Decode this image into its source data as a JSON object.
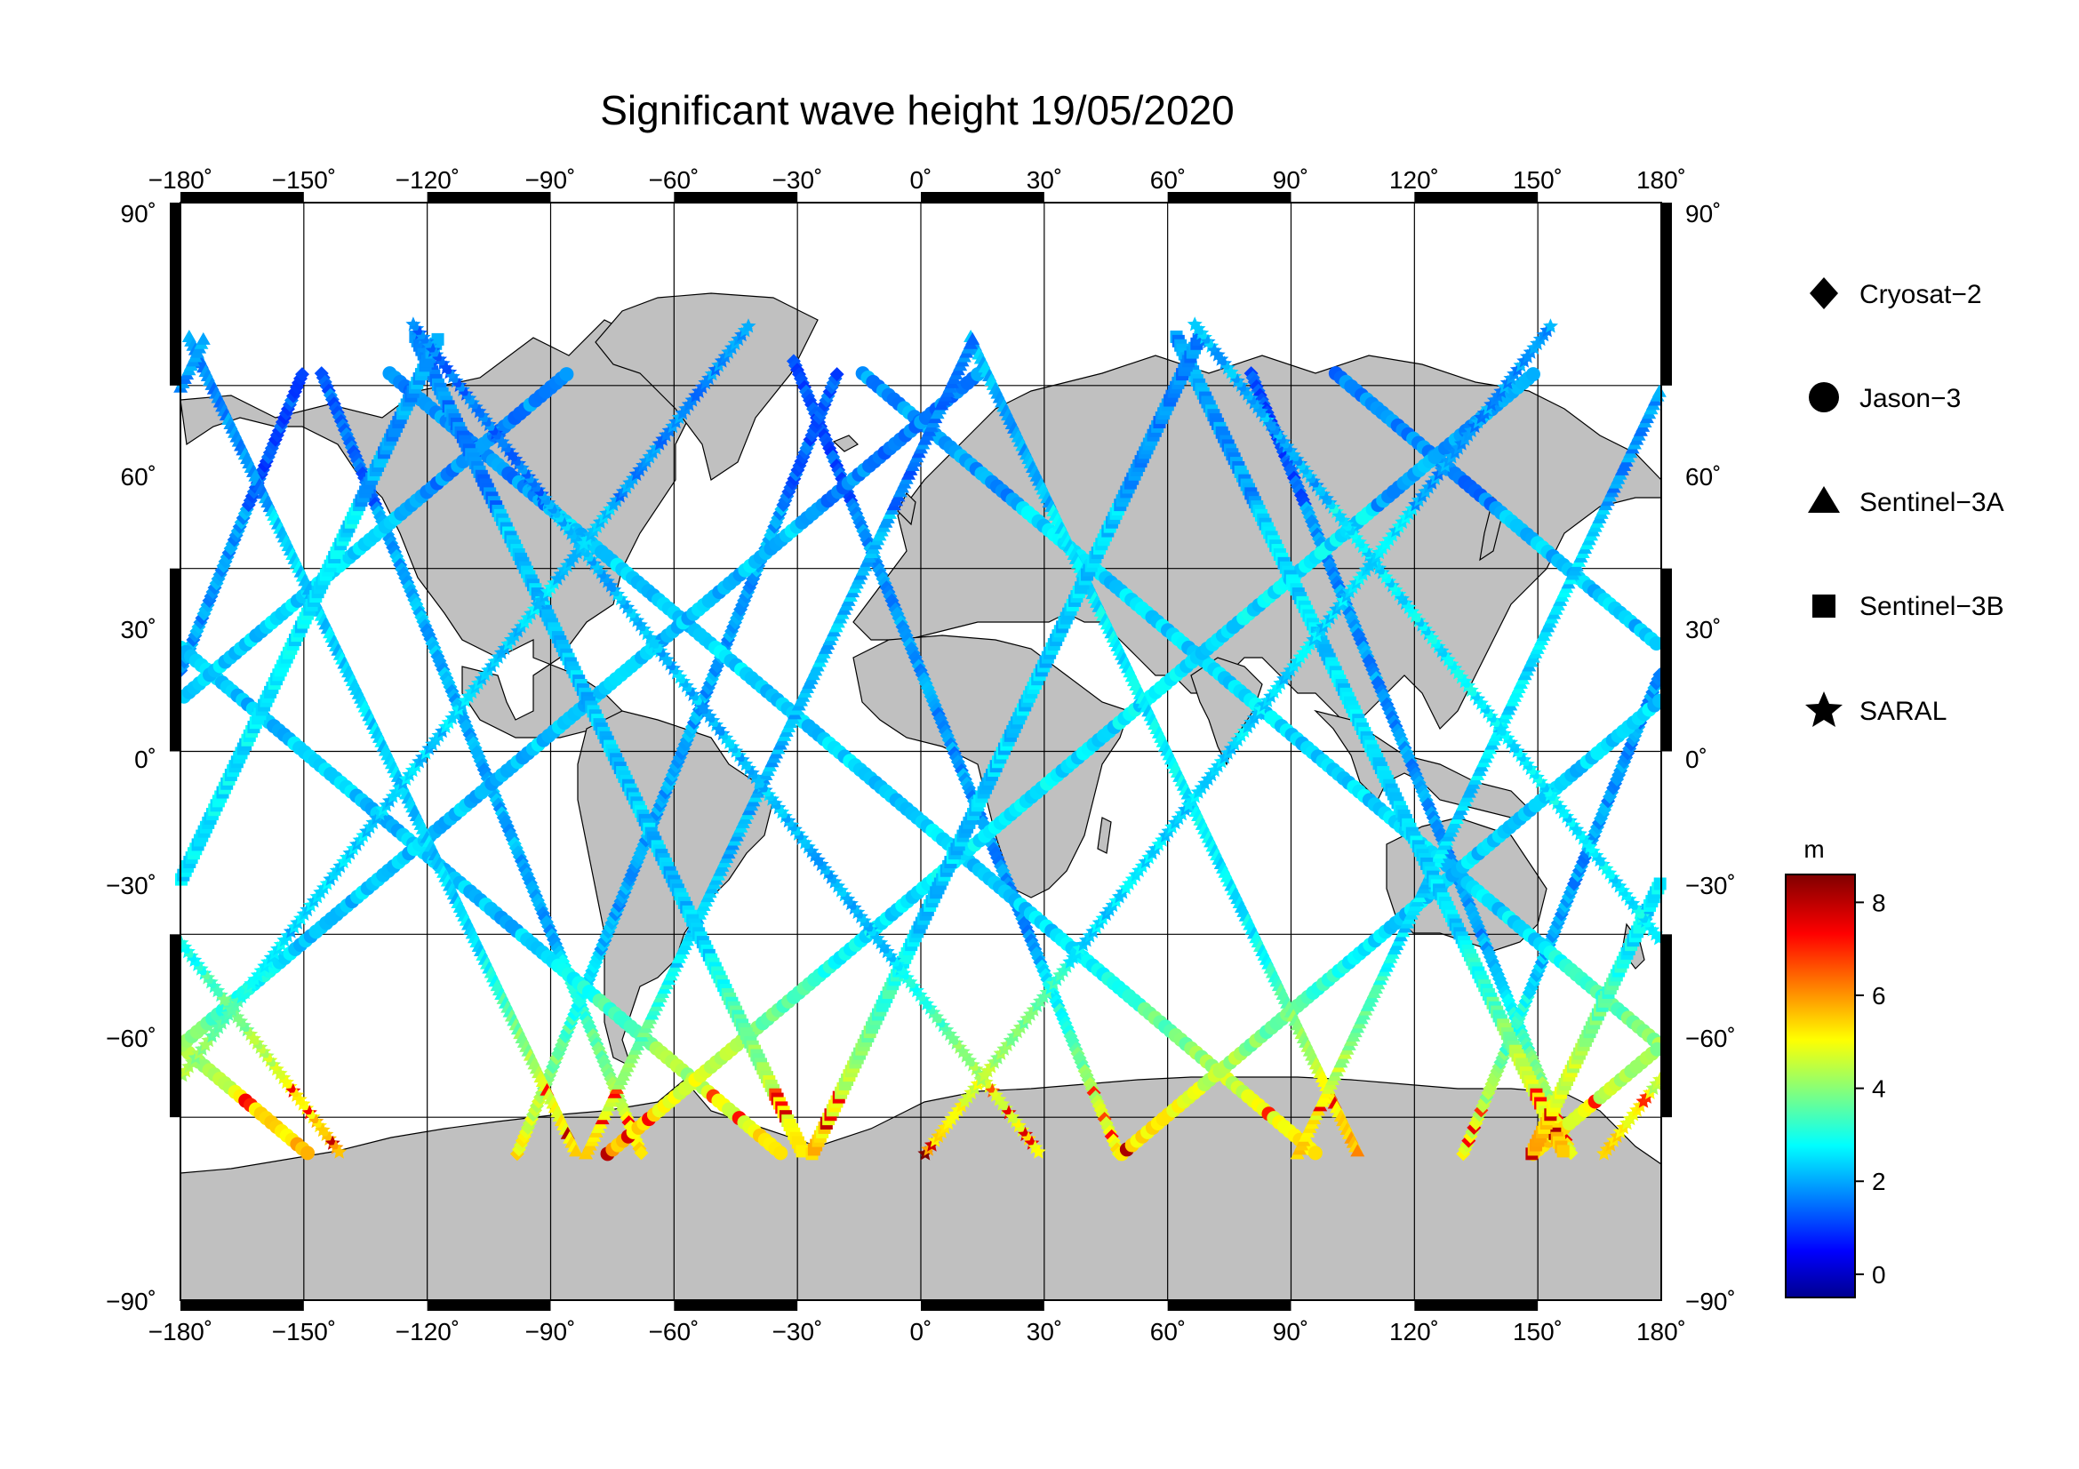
{
  "title": "Significant wave height 19/05/2020",
  "map": {
    "lon_range": [
      -180,
      180
    ],
    "lat_range": [
      -90,
      90
    ],
    "projection": "equirectangular",
    "grid": true,
    "grid_step_degrees": 30,
    "frame_style": "alternating black/white degree bars",
    "land_color": "#c0c0c0",
    "ocean_color": "#ffffff",
    "grid_color": "#000000"
  },
  "axes": {
    "x_ticks": [
      "−180˚",
      "−150˚",
      "−120˚",
      "−90˚",
      "−60˚",
      "−30˚",
      "0˚",
      "30˚",
      "60˚",
      "90˚",
      "120˚",
      "150˚",
      "180˚"
    ],
    "y_ticks_left": [
      "90˚",
      "60˚",
      "30˚",
      "0˚",
      "−30˚",
      "−60˚",
      "−90˚"
    ],
    "y_ticks_right": [
      "90˚",
      "60˚",
      "30˚",
      "0˚",
      "−30˚",
      "−60˚",
      "−90˚"
    ]
  },
  "legend": {
    "placement": "right",
    "items": [
      {
        "label": "Cryosat−2",
        "symbol": "diamond"
      },
      {
        "label": "Jason−3",
        "symbol": "circle"
      },
      {
        "label": "Sentinel−3A",
        "symbol": "triangle"
      },
      {
        "label": "Sentinel−3B",
        "symbol": "square"
      },
      {
        "label": "SARAL",
        "symbol": "star"
      }
    ]
  },
  "colorbar": {
    "unit": "m",
    "range": [
      -0.5,
      8.6
    ],
    "ticks": [
      "8",
      "6",
      "4",
      "2",
      "0"
    ],
    "colormap": "jet"
  },
  "chart_data": {
    "type": "scatter",
    "title": "Significant wave height 19/05/2020",
    "xlim": [
      -180,
      180
    ],
    "ylim": [
      -90,
      90
    ],
    "series": [
      {
        "name": "Cryosat−2",
        "marker": "diamond",
        "tracks": [
          {
            "lat": [
              64,
              -66
            ],
            "lon0": 8,
            "slope": 0.19,
            "baseline": 2.0
          },
          {
            "lat": [
              62,
              -66
            ],
            "lon0": -108,
            "slope": 0.19,
            "baseline": 2.2
          },
          {
            "lat": [
              62,
              -66
            ],
            "lon0": 118,
            "slope": 0.19,
            "baseline": 2.0
          },
          {
            "lat": [
              -66,
              62
            ],
            "lon0": -58,
            "slope": -0.19,
            "baseline": 2.1
          },
          {
            "lat": [
              -66,
              62
            ],
            "lon0": 172,
            "slope": -0.19,
            "baseline": 2.0
          }
        ]
      },
      {
        "name": "Jason−3",
        "marker": "circle",
        "tracks": [
          {
            "lat": [
              62,
              -66
            ],
            "lon0": -150,
            "slope": 0.55,
            "baseline": 2.4
          },
          {
            "lat": [
              62,
              -66
            ],
            "lon0": -20,
            "slope": 0.55,
            "baseline": 2.5
          },
          {
            "lat": [
              62,
              -66
            ],
            "lon0": 95,
            "slope": 0.55,
            "baseline": 2.6
          },
          {
            "lat": [
              -66,
              62
            ],
            "lon0": -95,
            "slope": -0.55,
            "baseline": 2.4
          },
          {
            "lat": [
              -66,
              62
            ],
            "lon0": 40,
            "slope": -0.55,
            "baseline": 2.7
          },
          {
            "lat": [
              -66,
              62
            ],
            "lon0": 165,
            "slope": -0.55,
            "baseline": 2.5
          }
        ]
      },
      {
        "name": "Sentinel−3A",
        "marker": "triangle",
        "tracks": [
          {
            "lat": [
              68,
              -66
            ],
            "lon0": -130,
            "slope": 0.22,
            "baseline": 2.5
          },
          {
            "lat": [
              68,
              -66
            ],
            "lon0": 60,
            "slope": 0.22,
            "baseline": 2.8
          },
          {
            "lat": [
              -66,
              68
            ],
            "lon0": -35,
            "slope": -0.22,
            "baseline": 2.3
          },
          {
            "lat": [
              -66,
              68
            ],
            "lon0": 138,
            "slope": -0.22,
            "baseline": 2.6
          }
        ]
      },
      {
        "name": "Sentinel−3B",
        "marker": "square",
        "tracks": [
          {
            "lat": [
              68,
              -66
            ],
            "lon0": -75,
            "slope": 0.22,
            "baseline": 2.4
          },
          {
            "lat": [
              68,
              -66
            ],
            "lon0": 110,
            "slope": 0.22,
            "baseline": 2.6
          },
          {
            "lat": [
              -66,
              68
            ],
            "lon0": -165,
            "slope": -0.22,
            "baseline": 2.7
          },
          {
            "lat": [
              -66,
              68
            ],
            "lon0": 20,
            "slope": -0.22,
            "baseline": 2.5
          }
        ]
      },
      {
        "name": "SARAL",
        "marker": "star",
        "tracks": [
          {
            "lat": [
              70,
              -66
            ],
            "lon0": -45,
            "slope": 0.35,
            "baseline": 2.3
          },
          {
            "lat": [
              70,
              -66
            ],
            "lon0": 145,
            "slope": 0.35,
            "baseline": 2.8
          },
          {
            "lat": [
              -66,
              70
            ],
            "lon0": -120,
            "slope": -0.35,
            "baseline": 2.5
          },
          {
            "lat": [
              -66,
              70
            ],
            "lon0": 75,
            "slope": -0.35,
            "baseline": 2.6
          }
        ]
      }
    ]
  }
}
